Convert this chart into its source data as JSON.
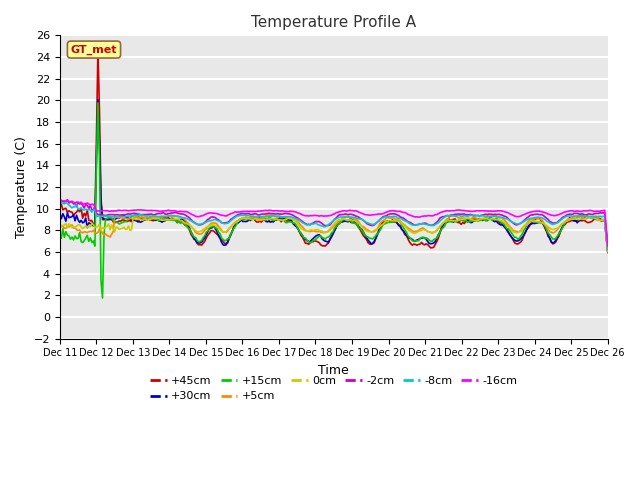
{
  "title": "Temperature Profile A",
  "xlabel": "Time",
  "ylabel": "Temperature (C)",
  "ylim": [
    -2,
    26
  ],
  "yticks": [
    -2,
    0,
    2,
    4,
    6,
    8,
    10,
    12,
    14,
    16,
    18,
    20,
    22,
    24,
    26
  ],
  "x_tick_labels": [
    "Dec 11",
    "Dec 12",
    "Dec 13",
    "Dec 14",
    "Dec 15",
    "Dec 16",
    "Dec 17",
    "Dec 18",
    "Dec 19",
    "Dec 20",
    "Dec 21",
    "Dec 22",
    "Dec 23",
    "Dec 24",
    "Dec 25",
    "Dec 26"
  ],
  "gt_met_label": "GT_met",
  "gt_met_color": "#cc0000",
  "gt_met_bg": "#ffff99",
  "series": [
    {
      "label": "+45cm",
      "color": "#cc0000",
      "lw": 1.2
    },
    {
      "label": "+30cm",
      "color": "#0000cc",
      "lw": 1.2
    },
    {
      "label": "+15cm",
      "color": "#00cc00",
      "lw": 1.2
    },
    {
      "label": "+5cm",
      "color": "#ff8800",
      "lw": 1.2
    },
    {
      "label": "0cm",
      "color": "#cccc00",
      "lw": 1.2
    },
    {
      "label": "-2cm",
      "color": "#cc00cc",
      "lw": 1.2
    },
    {
      "label": "-8cm",
      "color": "#00cccc",
      "lw": 1.2
    },
    {
      "label": "-16cm",
      "color": "#ff00ff",
      "lw": 1.2
    }
  ],
  "background_color": "#e8e8e8",
  "grid_color": "#ffffff"
}
